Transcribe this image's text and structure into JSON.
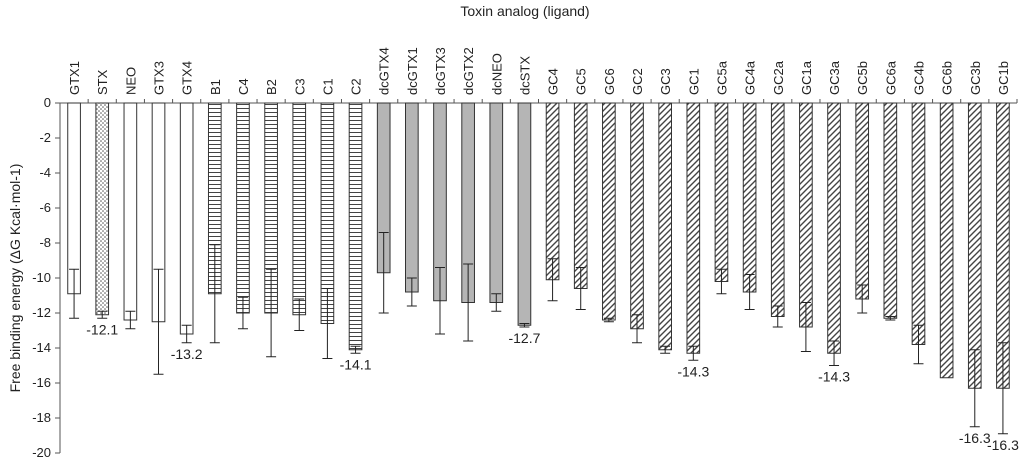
{
  "chart_data": {
    "type": "bar",
    "title": "Toxin analog (ligand)",
    "xlabel": "Toxin analog (ligand)",
    "ylabel": "Free binding energy (ΔG Kcal·mol-1)",
    "ylim": [
      -20,
      0
    ],
    "yticks": [
      0,
      -2,
      -4,
      -6,
      -8,
      -10,
      -12,
      -14,
      -16,
      -18,
      -20
    ],
    "grid": false,
    "x_axis_position": "top",
    "categories": [
      "GTX1",
      "STX",
      "NEO",
      "GTX3",
      "GTX4",
      "B1",
      "C4",
      "B2",
      "C3",
      "C1",
      "C2",
      "dcGTX4",
      "dcGTX1",
      "dcGTX3",
      "dcGTX2",
      "dcNEO",
      "dcSTX",
      "GC4",
      "GC5",
      "GC6",
      "GC2",
      "GC3",
      "GC1",
      "GC5a",
      "GC4a",
      "GC2a",
      "GC1a",
      "GC3a",
      "GC5b",
      "GC6a",
      "GC4b",
      "GC6b",
      "GC3b",
      "GC1b"
    ],
    "values": [
      -10.9,
      -12.1,
      -12.4,
      -12.5,
      -13.2,
      -10.9,
      -12.0,
      -12.0,
      -12.1,
      -12.6,
      -14.1,
      -9.7,
      -10.8,
      -11.3,
      -11.4,
      -11.4,
      -12.7,
      -10.1,
      -10.6,
      -12.4,
      -12.9,
      -14.1,
      -14.3,
      -10.2,
      -10.8,
      -12.2,
      -12.8,
      -14.3,
      -11.2,
      -12.3,
      -13.8,
      -15.7,
      -16.3,
      -16.3
    ],
    "errors": [
      1.4,
      0.2,
      0.5,
      3.0,
      0.5,
      2.8,
      0.9,
      2.5,
      0.9,
      2.0,
      0.2,
      2.3,
      0.8,
      1.9,
      2.2,
      0.5,
      0.1,
      1.2,
      1.2,
      0.1,
      0.8,
      0.2,
      0.4,
      0.7,
      1.0,
      0.6,
      1.4,
      0.7,
      0.8,
      0.1,
      1.1,
      0.0,
      2.2,
      2.6
    ],
    "patterns": [
      "white",
      "dotted",
      "white",
      "white",
      "white",
      "hlines",
      "hlines",
      "hlines",
      "hlines",
      "hlines",
      "hlines",
      "gray",
      "gray",
      "gray",
      "gray",
      "gray",
      "gray",
      "diag",
      "diag",
      "diag",
      "diag",
      "diag",
      "diag",
      "diag",
      "diag",
      "diag",
      "diag",
      "diag",
      "diag",
      "diag",
      "diag",
      "diag",
      "diag",
      "diag"
    ],
    "annotations": [
      {
        "category": "STX",
        "text": "-12.1",
        "value": -12.1
      },
      {
        "category": "GTX4",
        "text": "-13.2",
        "value": -13.2
      },
      {
        "category": "C2",
        "text": "-14.1",
        "value": -14.1
      },
      {
        "category": "dcSTX",
        "text": "-12.7",
        "value": -12.7
      },
      {
        "category": "GC1",
        "text": "-14.3",
        "value": -14.3
      },
      {
        "category": "GC3a",
        "text": "-14.3",
        "value": -14.3
      },
      {
        "category": "GC3b",
        "text": "-16.3",
        "value": -16.3
      },
      {
        "category": "GC1b",
        "text": "-16.3",
        "value": -16.3
      }
    ],
    "colors": {
      "gray": "#b5b5b5",
      "stroke": "#333333",
      "axis": "#555555"
    }
  }
}
